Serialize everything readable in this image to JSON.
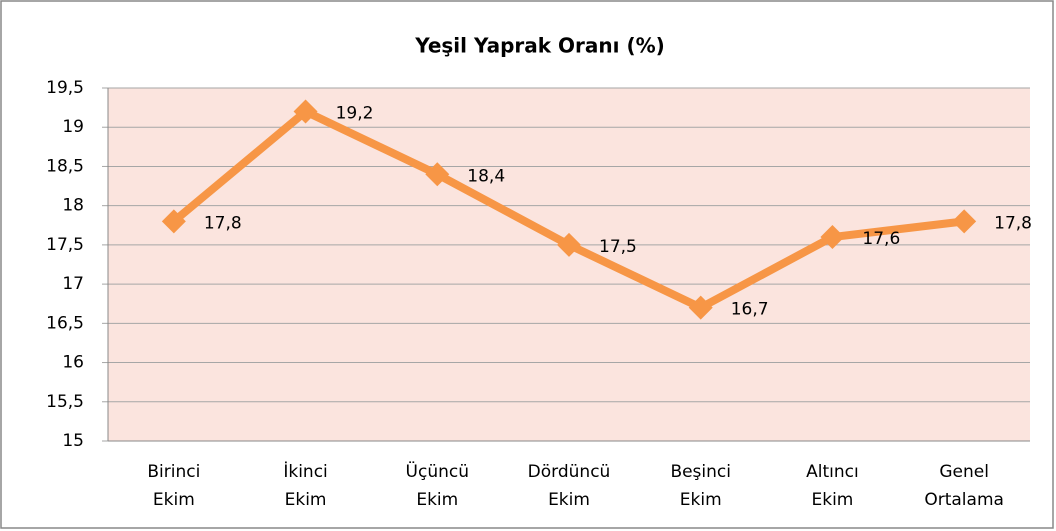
{
  "chart_data": {
    "type": "line",
    "title": "Yeşil Yaprak Oranı (%)",
    "categories": [
      [
        "Birinci",
        "Ekim"
      ],
      [
        "İkinci",
        "Ekim"
      ],
      [
        "Üçüncü",
        "Ekim"
      ],
      [
        "Dördüncü",
        "Ekim"
      ],
      [
        "Beşinci",
        "Ekim"
      ],
      [
        "Altıncı",
        "Ekim"
      ],
      [
        "Genel",
        "Ortalama"
      ]
    ],
    "values": [
      17.8,
      19.2,
      18.4,
      17.5,
      16.7,
      17.6,
      17.8
    ],
    "value_labels": [
      "17,8",
      "19,2",
      "18,4",
      "17,5",
      "16,7",
      "17,6",
      "17,8"
    ],
    "color": "#f79646",
    "ylim": [
      15,
      19.5
    ],
    "yticks": [
      15,
      {
        "value": 15.5,
        "label": "15,5"
      },
      16,
      {
        "value": 16.5,
        "label": "16,5"
      },
      17,
      {
        "value": 17.5,
        "label": "17,5"
      },
      18,
      {
        "value": 18.5,
        "label": "18,5"
      },
      19,
      {
        "value": 19.5,
        "label": "19,5"
      }
    ],
    "grid": true
  }
}
